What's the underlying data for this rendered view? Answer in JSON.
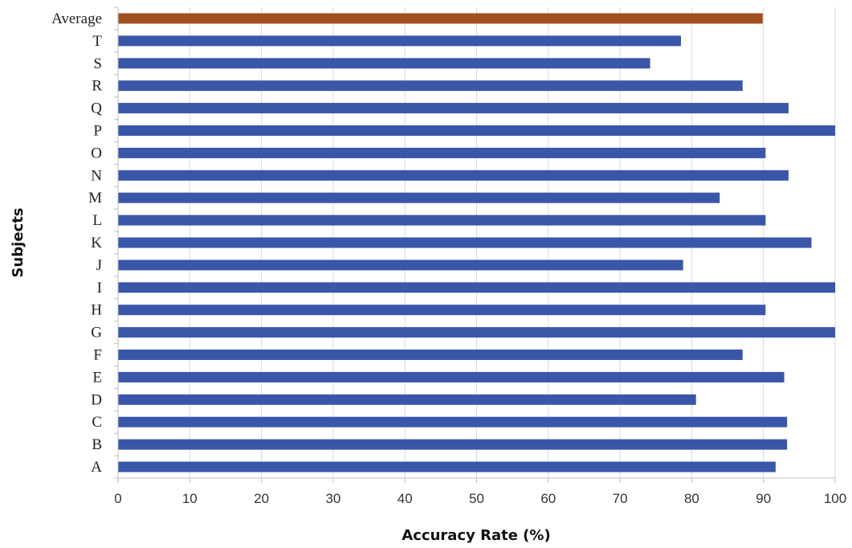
{
  "chart_data": {
    "type": "bar",
    "orientation": "horizontal",
    "title": "",
    "xlabel": "Accuracy Rate (%)",
    "ylabel": "Subjects",
    "xlim": [
      0,
      100
    ],
    "xticks": [
      "0",
      "10",
      "20",
      "30",
      "40",
      "50",
      "60",
      "70",
      "80",
      "90",
      "100"
    ],
    "grid": "vertical",
    "categories": [
      "A",
      "B",
      "C",
      "D",
      "E",
      "F",
      "G",
      "H",
      "I",
      "J",
      "K",
      "L",
      "M",
      "N",
      "O",
      "P",
      "Q",
      "R",
      "S",
      "T",
      "Average"
    ],
    "values": [
      91.7,
      93.3,
      93.3,
      80.6,
      92.9,
      87.1,
      100,
      90.3,
      100,
      78.8,
      96.7,
      90.3,
      83.9,
      93.5,
      90.3,
      100,
      93.5,
      87.1,
      74.2,
      78.5,
      89.9
    ],
    "colors": {
      "subject": "#3a56a8",
      "average": "#a0501e",
      "grid": "#d9d9d9",
      "axis": "#bfbfbf"
    }
  }
}
